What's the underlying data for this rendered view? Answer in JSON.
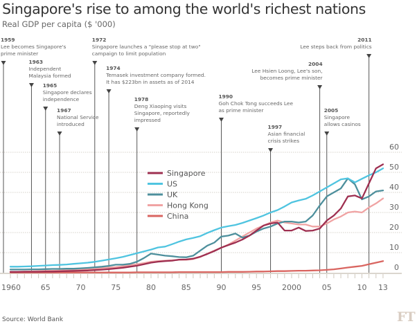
{
  "header": {
    "title": "Singapore's rise to among the world's richest nations",
    "subtitle": "Real GDP per capita ($ '000)"
  },
  "footer": {
    "source": "Source: World Bank",
    "logo": "FT"
  },
  "chart_data": {
    "type": "line",
    "title": "Singapore's rise to among the world's richest nations",
    "subtitle": "Real GDP per capita ($ '000)",
    "xlabel": "",
    "ylabel": "Real GDP per capita ($ '000)",
    "xlim": [
      1960,
      2013
    ],
    "ylim": [
      0,
      60
    ],
    "yticks": [
      0,
      10,
      20,
      30,
      40,
      50,
      60
    ],
    "ytick_labels": [
      "0",
      "10",
      "20",
      "30",
      "40",
      "50",
      "60"
    ],
    "xtick_years": [
      1960,
      1965,
      1970,
      1975,
      1980,
      1985,
      1990,
      1995,
      2000,
      2005,
      2010,
      2013
    ],
    "xtick_labels": [
      "1960",
      "65",
      "70",
      "75",
      "80",
      "85",
      "90",
      "95",
      "2000",
      "05",
      "10",
      "13"
    ],
    "grid": true,
    "legend_position": "center-left",
    "x": [
      1960,
      1961,
      1962,
      1963,
      1964,
      1965,
      1966,
      1967,
      1968,
      1969,
      1970,
      1971,
      1972,
      1973,
      1974,
      1975,
      1976,
      1977,
      1978,
      1979,
      1980,
      1981,
      1982,
      1983,
      1984,
      1985,
      1986,
      1987,
      1988,
      1989,
      1990,
      1991,
      1992,
      1993,
      1994,
      1995,
      1996,
      1997,
      1998,
      1999,
      2000,
      2001,
      2002,
      2003,
      2004,
      2005,
      2006,
      2007,
      2008,
      2009,
      2010,
      2011,
      2012,
      2013
    ],
    "series": [
      {
        "name": "Singapore",
        "color": "#9e2f50",
        "values": [
          0.4,
          0.4,
          0.5,
          0.5,
          0.5,
          0.6,
          0.6,
          0.7,
          0.8,
          0.9,
          1.0,
          1.1,
          1.3,
          1.5,
          1.8,
          2.1,
          2.5,
          3.0,
          3.5,
          4.2,
          5.0,
          5.5,
          5.8,
          6.0,
          6.5,
          6.6,
          7.0,
          8.0,
          9.3,
          10.8,
          12.5,
          13.8,
          15.0,
          16.5,
          18.5,
          21.0,
          23.5,
          24.5,
          25.0,
          21.0,
          21.0,
          22.5,
          20.8,
          21.0,
          22.0,
          26.0,
          28.5,
          32.0,
          38.0,
          38.5,
          37.0,
          44.5,
          52.0,
          54.0
        ]
      },
      {
        "name": "US",
        "color": "#4fc4e0",
        "values": [
          3.0,
          3.0,
          3.1,
          3.2,
          3.4,
          3.6,
          3.8,
          3.9,
          4.1,
          4.4,
          4.7,
          5.0,
          5.4,
          6.0,
          6.6,
          7.2,
          7.9,
          8.8,
          9.7,
          10.6,
          11.5,
          12.6,
          13.0,
          14.2,
          15.5,
          16.6,
          17.3,
          18.2,
          19.8,
          21.2,
          22.5,
          23.2,
          23.8,
          24.8,
          26.0,
          27.2,
          28.5,
          30.0,
          31.2,
          33.0,
          35.0,
          36.0,
          36.8,
          38.5,
          40.5,
          42.5,
          44.5,
          46.5,
          47.0,
          45.0,
          46.8,
          48.5,
          50.0,
          52.0
        ]
      },
      {
        "name": "UK",
        "color": "#4d8f9c",
        "values": [
          1.6,
          1.6,
          1.6,
          1.7,
          1.7,
          1.8,
          1.9,
          1.9,
          2.0,
          2.0,
          2.2,
          2.4,
          2.7,
          3.0,
          3.4,
          4.0,
          4.0,
          4.4,
          5.5,
          7.3,
          9.5,
          9.0,
          8.5,
          8.2,
          7.8,
          7.7,
          8.5,
          11.0,
          13.5,
          15.0,
          18.0,
          18.5,
          19.5,
          17.5,
          18.5,
          20.5,
          22.0,
          23.0,
          24.5,
          25.5,
          25.5,
          25.0,
          25.5,
          28.5,
          33.5,
          38.0,
          40.0,
          42.0,
          47.0,
          44.0,
          36.5,
          38.0,
          40.5,
          41.0
        ]
      },
      {
        "name": "Hong Kong",
        "color": "#f0a3a3",
        "values": [
          0.5,
          0.5,
          0.6,
          0.7,
          0.8,
          0.9,
          1.0,
          1.1,
          1.2,
          1.4,
          1.6,
          1.8,
          2.0,
          2.3,
          2.6,
          2.8,
          3.2,
          3.8,
          4.2,
          4.8,
          5.5,
          5.8,
          6.0,
          6.2,
          6.4,
          6.4,
          6.8,
          7.8,
          9.5,
          11.0,
          12.5,
          14.0,
          16.0,
          18.0,
          20.0,
          22.0,
          23.5,
          25.0,
          26.0,
          25.0,
          24.5,
          24.0,
          24.0,
          23.0,
          23.0,
          24.5,
          26.5,
          28.0,
          30.0,
          30.5,
          30.0,
          32.5,
          34.5,
          37.0
        ]
      },
      {
        "name": "China",
        "color": "#d96560",
        "values": [
          0.1,
          0.1,
          0.1,
          0.1,
          0.1,
          0.1,
          0.1,
          0.1,
          0.1,
          0.1,
          0.1,
          0.1,
          0.1,
          0.1,
          0.1,
          0.1,
          0.1,
          0.1,
          0.2,
          0.2,
          0.2,
          0.2,
          0.2,
          0.2,
          0.3,
          0.3,
          0.3,
          0.3,
          0.3,
          0.3,
          0.3,
          0.4,
          0.4,
          0.4,
          0.5,
          0.6,
          0.6,
          0.7,
          0.8,
          0.8,
          0.9,
          1.0,
          1.0,
          1.1,
          1.2,
          1.4,
          1.7,
          2.1,
          2.6,
          3.0,
          3.4,
          4.2,
          5.0,
          5.8
        ]
      }
    ],
    "annotations": [
      {
        "year": 1959,
        "label": "1959",
        "lines": [
          "Lee becomes Singapore's",
          "prime minister"
        ],
        "align": "left",
        "tier": 0
      },
      {
        "year": 1963,
        "label": "1963",
        "lines": [
          "Independent",
          "Malaysia formed"
        ],
        "align": "left",
        "tier": 1
      },
      {
        "year": 1965,
        "label": "1965",
        "lines": [
          "Singapore declares",
          "independence"
        ],
        "align": "left",
        "tier": 2
      },
      {
        "year": 1967,
        "label": "1967",
        "lines": [
          "National Service",
          "introduced"
        ],
        "align": "left",
        "tier": 3
      },
      {
        "year": 1972,
        "label": "1972",
        "lines": [
          "Singapore launches a \"please stop at two\"",
          "campaign to limit population"
        ],
        "align": "left",
        "tier": 0
      },
      {
        "year": 1974,
        "label": "1974",
        "lines": [
          "Temasek investment company formed.",
          "It has $223bn in assets as of 2014"
        ],
        "align": "left",
        "tier": 1
      },
      {
        "year": 1978,
        "label": "1978",
        "lines": [
          "Deng Xiaoping visits",
          "Singapore, reportedly",
          "impressed"
        ],
        "align": "left",
        "tier": 2
      },
      {
        "year": 1990,
        "label": "1990",
        "lines": [
          "Goh Chok Tong succeeds Lee",
          "as prime minister"
        ],
        "align": "left",
        "tier": 3
      },
      {
        "year": 1997,
        "label": "1997",
        "lines": [
          "Asian financial",
          "crisis strikes"
        ],
        "align": "left",
        "tier": 4
      },
      {
        "year": 2004,
        "label": "2004",
        "lines": [
          "Lee Hsien Loong, Lee's son,",
          "becomes prime minister"
        ],
        "align": "right",
        "tier": 1
      },
      {
        "year": 2005,
        "label": "2005",
        "lines": [
          "Singapore",
          "allows casinos"
        ],
        "align": "left",
        "tier": 3
      },
      {
        "year": 2011,
        "label": "2011",
        "lines": [
          "Lee steps back from politics"
        ],
        "align": "right",
        "tier": 0
      }
    ]
  }
}
